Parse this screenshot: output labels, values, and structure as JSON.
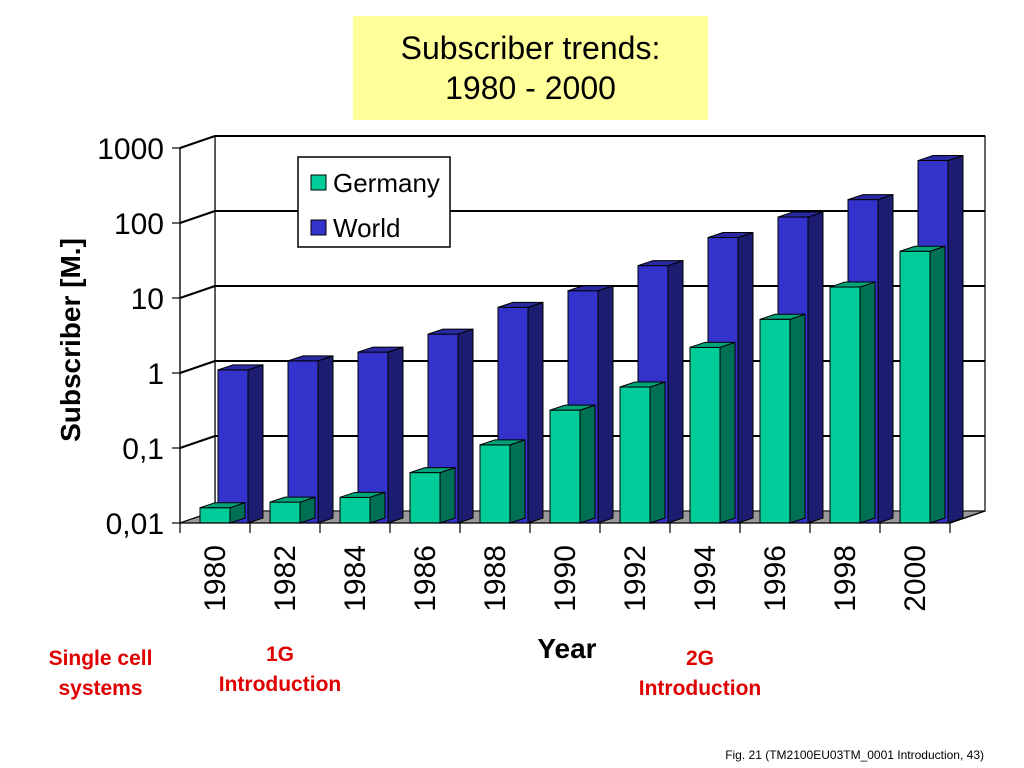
{
  "title": {
    "line1": "Subscriber trends:",
    "line2": "1980 - 2000"
  },
  "notes": {
    "single_cell": "Single cell\nsystems",
    "g1": "1G\nIntroduction",
    "g2": "2G\nIntroduction"
  },
  "footer": "Fig. 21 (TM2100EU03TM_0001 Introduction, 43)",
  "chart_data": {
    "type": "bar",
    "title": "Subscriber trends: 1980 - 2000",
    "xlabel": "Year",
    "ylabel": "Subscriber [M.]",
    "yscale": "log",
    "ylim": [
      0.01,
      1000
    ],
    "yticks": [
      "0,01",
      "0,1",
      "1",
      "10",
      "100",
      "1000"
    ],
    "categories": [
      "1980",
      "1982",
      "1984",
      "1986",
      "1988",
      "1990",
      "1992",
      "1994",
      "1996",
      "1998",
      "2000"
    ],
    "series": [
      {
        "name": "Germany",
        "color": "#00cc99",
        "values": [
          0.016,
          0.019,
          0.022,
          0.047,
          0.11,
          0.32,
          0.65,
          2.2,
          5.2,
          14,
          42
        ]
      },
      {
        "name": "World",
        "color": "#3333cc",
        "values": [
          1.1,
          1.45,
          1.9,
          3.3,
          7.5,
          12.5,
          27,
          64,
          120,
          205,
          680
        ]
      }
    ],
    "legend_position": "top-left",
    "grid": true
  }
}
